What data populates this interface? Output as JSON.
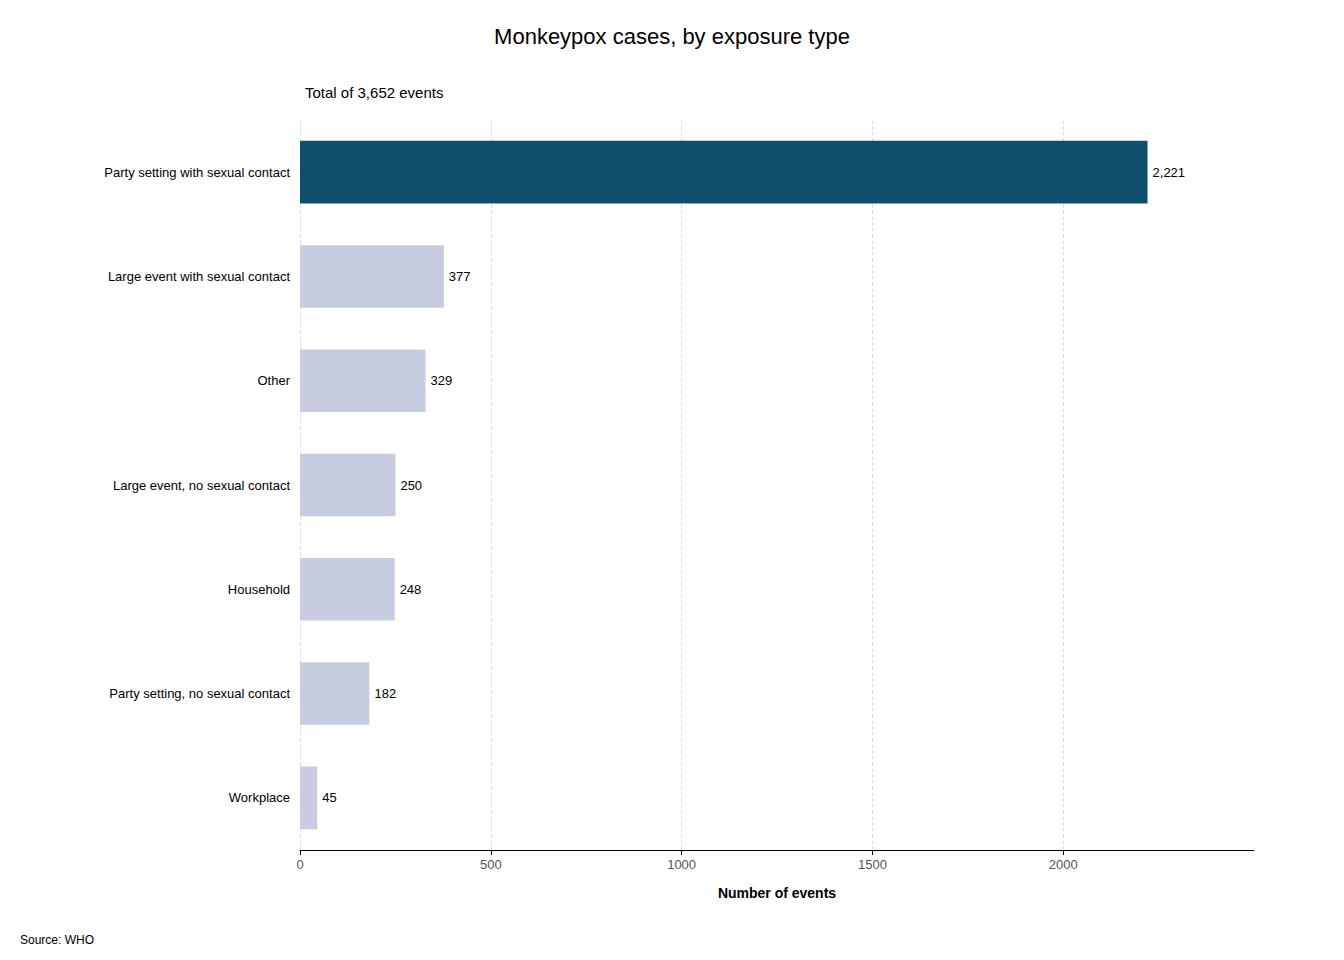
{
  "chart_data": {
    "type": "bar",
    "orientation": "horizontal",
    "title": "Monkeypox cases, by exposure type",
    "subtitle": "Total of 3,652 events",
    "source": "Source: WHO",
    "xlabel": "Number of events",
    "categories": [
      "Party setting with sexual contact",
      "Large event with sexual contact",
      "Other",
      "Large event, no sexual contact",
      "Household",
      "Party setting, no sexual contact",
      "Workplace"
    ],
    "values": [
      2221,
      377,
      329,
      250,
      248,
      182,
      45
    ],
    "value_labels": [
      "2,221",
      "377",
      "329",
      "250",
      "248",
      "182",
      "45"
    ],
    "data_labels": true,
    "colors": [
      "#0e4f6e",
      "#c8cce0",
      "#c8cce0",
      "#c8cce0",
      "#c8cce0",
      "#c8cce0",
      "#c8cce0"
    ],
    "xlim": [
      0,
      2500
    ],
    "xticks": [
      0,
      500,
      1000,
      1500,
      2000
    ],
    "grid": true
  }
}
